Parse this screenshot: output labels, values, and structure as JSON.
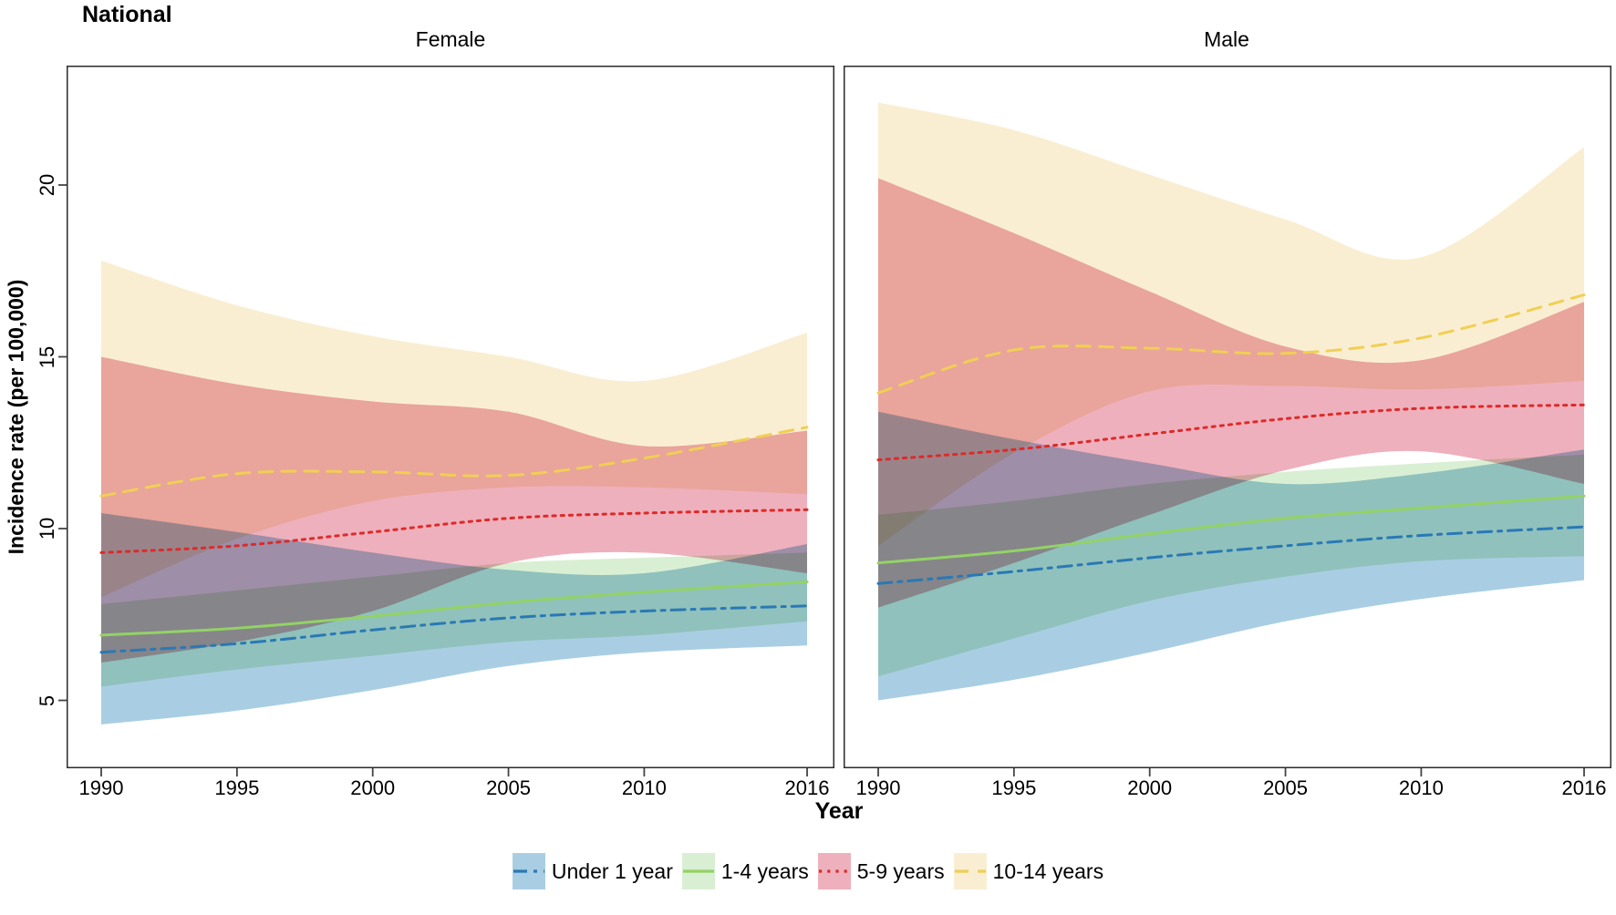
{
  "title": "National",
  "y_axis": {
    "label": "Incidence rate (per 100,000)",
    "ticks": [
      5,
      10,
      15,
      20
    ],
    "min": 3.0,
    "max": 23.5
  },
  "x_axis": {
    "label": "Year",
    "ticks": [
      1990,
      1995,
      2000,
      2005,
      2010,
      2016
    ],
    "min": 1988.7,
    "max": 2017.0
  },
  "chart_data": {
    "type": "line",
    "subtype": "central-estimate-with-uncertainty-bands",
    "title": "National",
    "xlabel": "Year",
    "ylabel": "Incidence rate (per 100,000)",
    "x": [
      1990,
      1995,
      2000,
      2005,
      2010,
      2016
    ],
    "xlim": [
      1988.7,
      2017.0
    ],
    "ylim": [
      3.0,
      23.5
    ],
    "grid": false,
    "legend_position": "bottom-center",
    "series_meta": [
      {
        "id": "under1",
        "label": "Under 1 year",
        "line_color": "#2979b5",
        "band_color": "#a9cee3",
        "dash": "dash-dot"
      },
      {
        "id": "y1_4",
        "label": "1-4 years",
        "line_color": "#93d265",
        "band_color": "#d9efd3",
        "dash": "solid"
      },
      {
        "id": "y5_9",
        "label": "5-9 years",
        "line_color": "#dd2a2a",
        "band_color": "#eeb0bc",
        "dash": "dotted"
      },
      {
        "id": "y10_14",
        "label": "10-14 years",
        "line_color": "#f0cf54",
        "band_color": "#faeed2",
        "dash": "dashed"
      }
    ],
    "panels": [
      {
        "title": "Female",
        "series": [
          {
            "id": "under1",
            "center": [
              6.4,
              6.65,
              7.05,
              7.4,
              7.6,
              7.75
            ],
            "lower": [
              4.3,
              4.7,
              5.3,
              6.0,
              6.4,
              6.6
            ],
            "upper": [
              10.45,
              9.9,
              9.3,
              8.8,
              8.7,
              9.55
            ]
          },
          {
            "id": "y1_4",
            "center": [
              6.9,
              7.1,
              7.45,
              7.85,
              8.15,
              8.45
            ],
            "lower": [
              5.4,
              5.9,
              6.3,
              6.7,
              6.9,
              7.3
            ],
            "upper": [
              7.8,
              8.2,
              8.6,
              9.0,
              9.15,
              9.3
            ]
          },
          {
            "id": "y5_9",
            "center": [
              9.3,
              9.5,
              9.9,
              10.3,
              10.45,
              10.55
            ],
            "lower": [
              6.1,
              6.7,
              7.6,
              9.0,
              9.3,
              8.7
            ],
            "upper": [
              15.0,
              14.2,
              13.7,
              13.4,
              12.4,
              12.85
            ]
          },
          {
            "id": "y10_14",
            "center": [
              10.95,
              11.6,
              11.65,
              11.55,
              12.05,
              12.95
            ],
            "lower": [
              8.0,
              9.7,
              10.8,
              11.2,
              11.2,
              11.0
            ],
            "upper": [
              17.8,
              16.5,
              15.6,
              15.0,
              14.3,
              15.7
            ]
          }
        ]
      },
      {
        "title": "Male",
        "series": [
          {
            "id": "under1",
            "center": [
              8.4,
              8.75,
              9.15,
              9.5,
              9.8,
              10.05
            ],
            "lower": [
              5.0,
              5.6,
              6.4,
              7.3,
              7.95,
              8.5
            ],
            "upper": [
              13.4,
              12.6,
              11.9,
              11.3,
              11.6,
              12.3
            ]
          },
          {
            "id": "y1_4",
            "center": [
              9.0,
              9.35,
              9.85,
              10.3,
              10.6,
              10.95
            ],
            "lower": [
              5.7,
              6.8,
              7.9,
              8.6,
              9.05,
              9.2
            ],
            "upper": [
              10.4,
              10.8,
              11.3,
              11.65,
              11.9,
              12.15
            ]
          },
          {
            "id": "y5_9",
            "center": [
              12.0,
              12.3,
              12.75,
              13.2,
              13.5,
              13.6
            ],
            "lower": [
              7.7,
              9.0,
              10.4,
              11.7,
              12.25,
              11.3
            ],
            "upper": [
              20.2,
              18.6,
              16.9,
              15.3,
              14.9,
              16.6
            ]
          },
          {
            "id": "y10_14",
            "center": [
              13.95,
              15.2,
              15.25,
              15.1,
              15.55,
              16.8
            ],
            "lower": [
              9.5,
              12.2,
              14.0,
              14.15,
              14.05,
              14.3
            ],
            "upper": [
              22.4,
              21.6,
              20.3,
              19.0,
              17.9,
              21.1
            ]
          }
        ]
      }
    ]
  }
}
